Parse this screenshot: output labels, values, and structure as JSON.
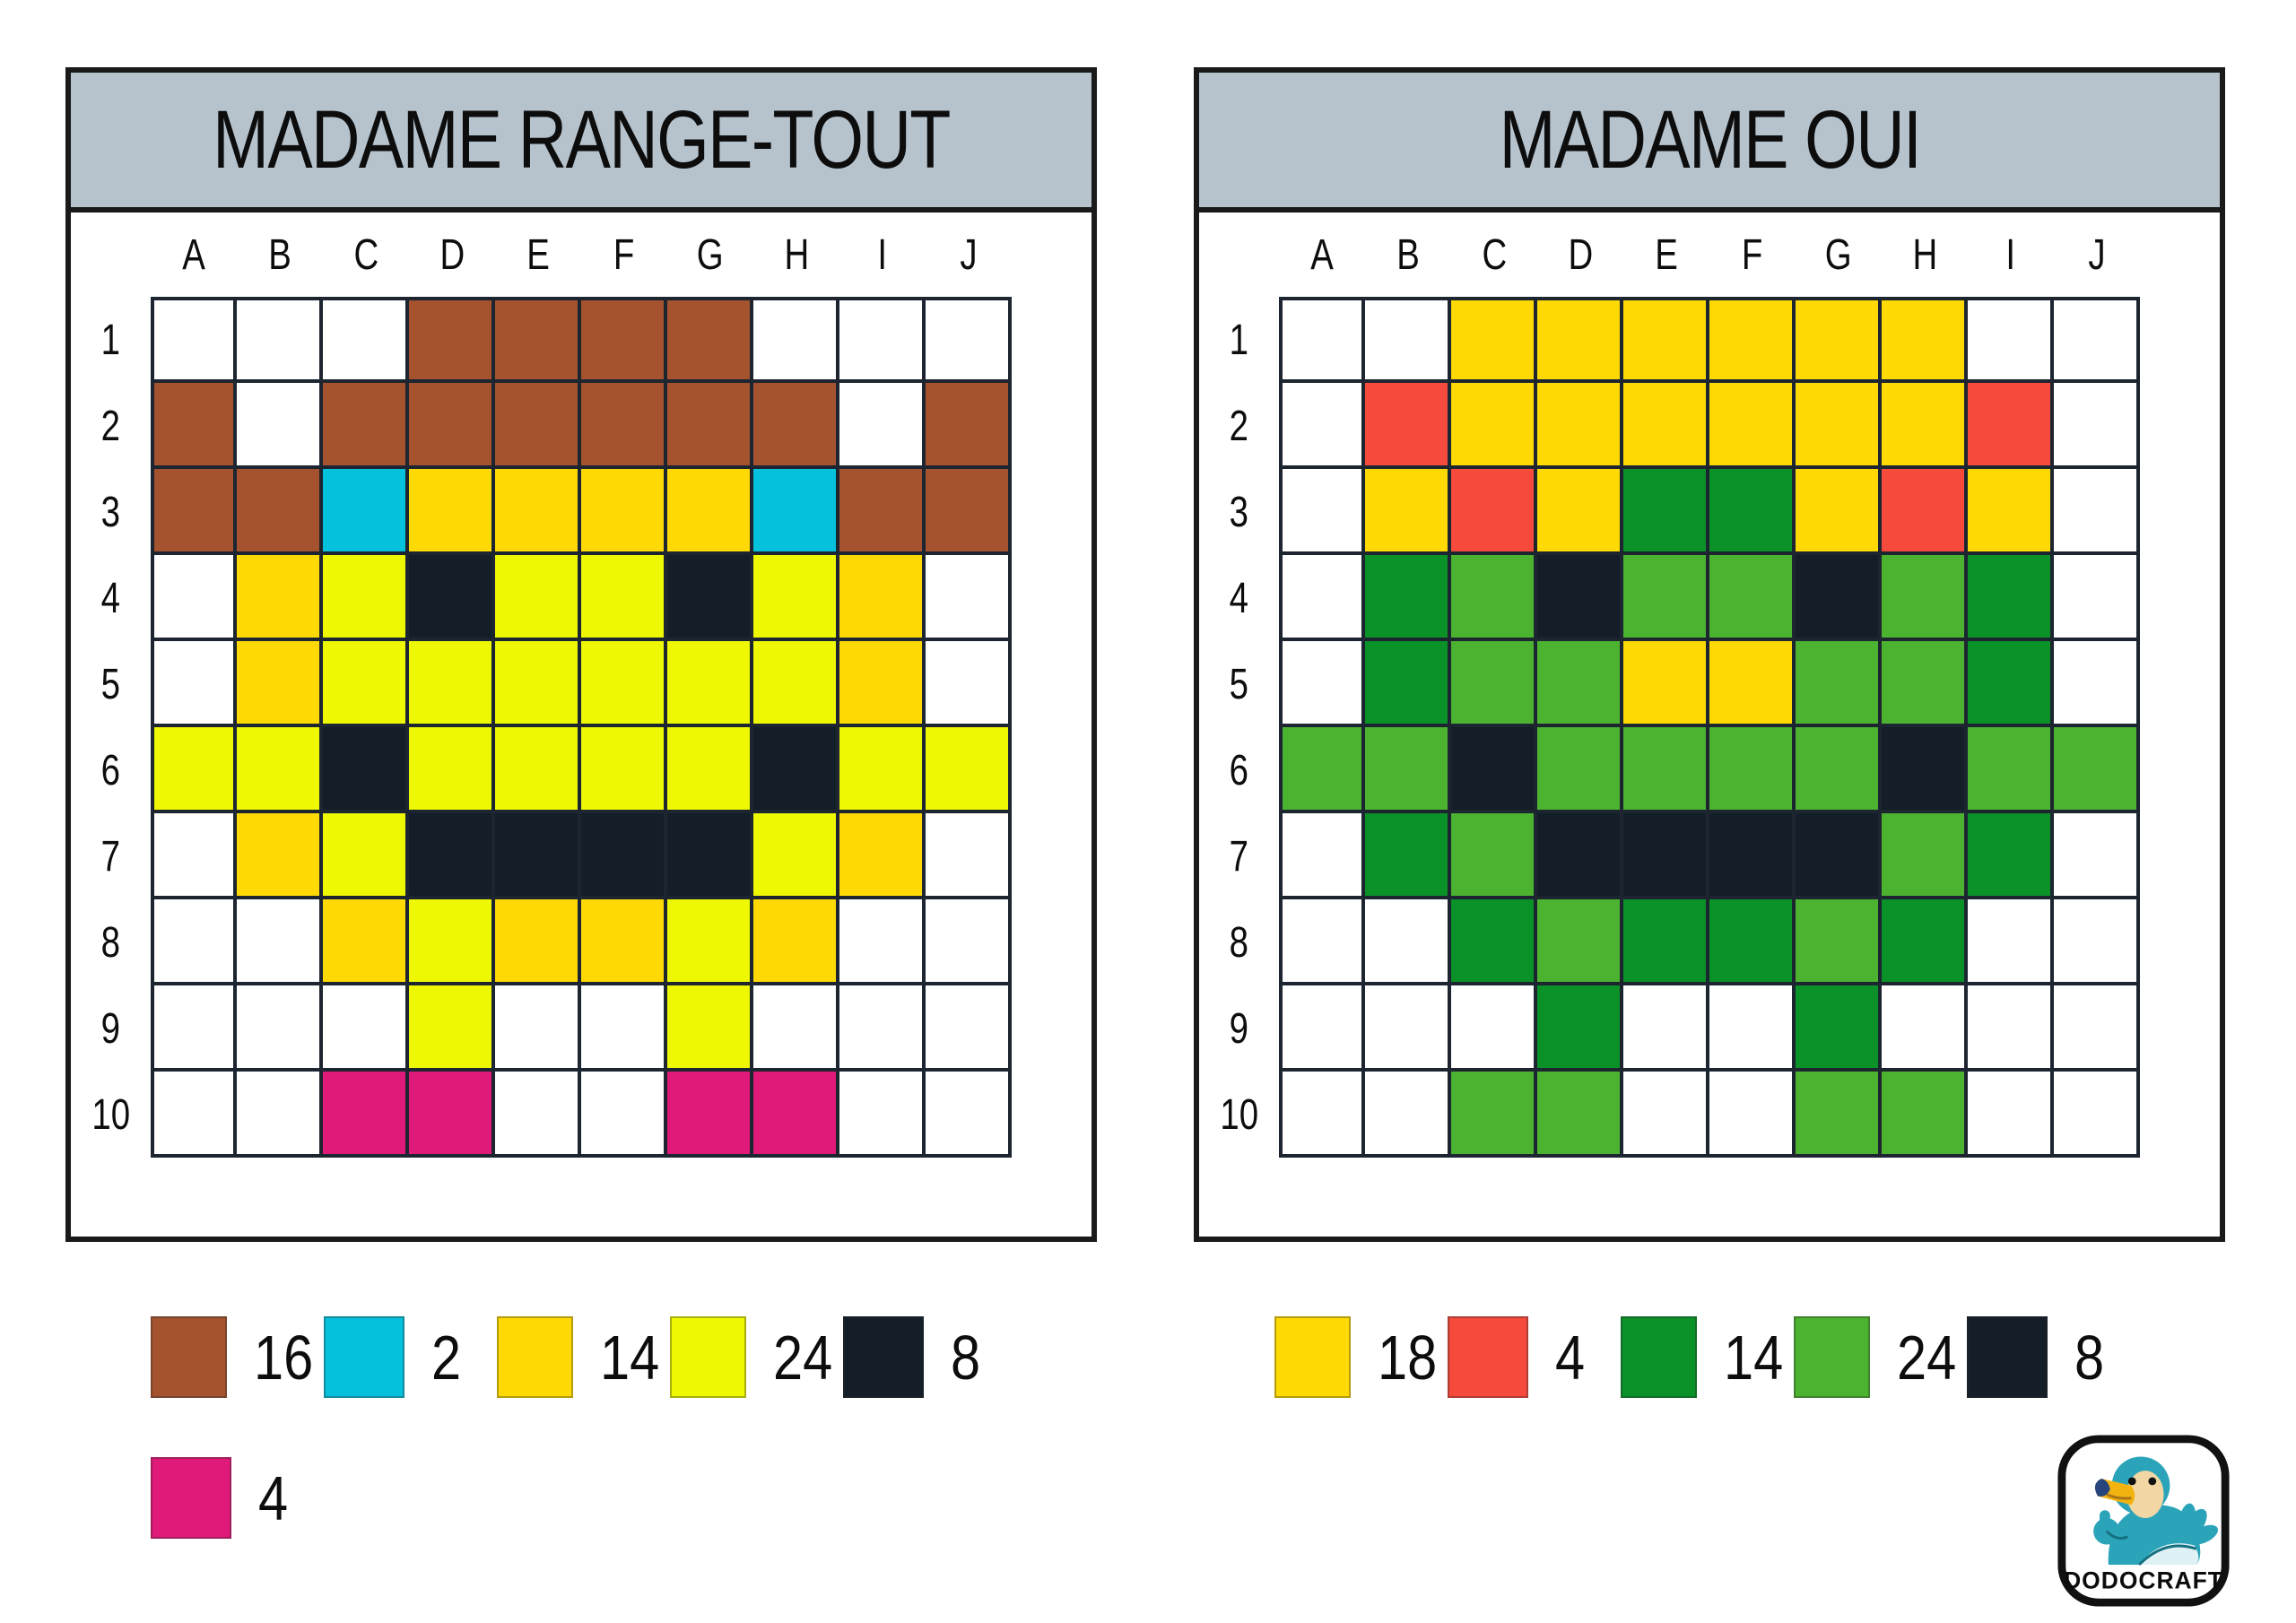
{
  "panels": [
    {
      "title": "MADAME RANGE-TOUT",
      "column_labels": [
        "A",
        "B",
        "C",
        "D",
        "E",
        "F",
        "G",
        "H",
        "I",
        "J"
      ],
      "row_labels": [
        "1",
        "2",
        "3",
        "4",
        "5",
        "6",
        "7",
        "8",
        "9",
        "10"
      ],
      "palette": {
        "_": "#ffffff",
        "b": "#a5532f",
        "c": "#05c1db",
        "y": "#ffd903",
        "Y": "#eef803",
        "k": "#141e28",
        "p": "#e01a78"
      },
      "palette_names": {
        "b": "brown",
        "c": "cyan",
        "y": "gold-yellow",
        "Y": "bright-yellow",
        "k": "black",
        "p": "pink",
        "_": "white"
      },
      "cells": [
        "___bbbb___",
        "b_bbbbbb_b",
        "bbcyyyycbb",
        "_yYkYYkYy_",
        "_yYYYYYYy_",
        "YYkYYYYkYY",
        "_yYkkkkYy_",
        "__yYyyYy__",
        "___Y__Y___",
        "__pp__pp__"
      ],
      "legend": [
        {
          "color_key": "b",
          "count": "16"
        },
        {
          "color_key": "c",
          "count": "2"
        },
        {
          "color_key": "y",
          "count": "14"
        },
        {
          "color_key": "Y",
          "count": "24"
        },
        {
          "color_key": "k",
          "count": "8"
        },
        {
          "color_key": "p",
          "count": "4"
        }
      ]
    },
    {
      "title": "MADAME OUI",
      "column_labels": [
        "A",
        "B",
        "C",
        "D",
        "E",
        "F",
        "G",
        "H",
        "I",
        "J"
      ],
      "row_labels": [
        "1",
        "2",
        "3",
        "4",
        "5",
        "6",
        "7",
        "8",
        "9",
        "10"
      ],
      "palette": {
        "_": "#ffffff",
        "y": "#ffd903",
        "r": "#f54a3c",
        "g": "#0a9128",
        "G": "#4cb330",
        "k": "#141e28"
      },
      "palette_names": {
        "y": "gold-yellow",
        "r": "red",
        "g": "dark-green",
        "G": "light-green",
        "k": "black",
        "_": "white"
      },
      "cells": [
        "__yyyyyy__",
        "_ryyyyyyr_",
        "_yryggyry_",
        "_gGkGGkGg_",
        "_gGGyyGGg_",
        "GGkGGGGkGG",
        "_gGkkkkGg_",
        "__gGggGg__",
        "___g__g___",
        "__GG__GG__"
      ],
      "legend": [
        {
          "color_key": "y",
          "count": "18"
        },
        {
          "color_key": "r",
          "count": "4"
        },
        {
          "color_key": "g",
          "count": "14"
        },
        {
          "color_key": "G",
          "count": "24"
        },
        {
          "color_key": "k",
          "count": "8"
        }
      ]
    }
  ],
  "logo": {
    "text": "DODOCRAFT"
  },
  "colors": {
    "title_bar_bg": "#b6c3cd",
    "grid_line": "#1c2530",
    "card_border": "#1a1a1a"
  }
}
